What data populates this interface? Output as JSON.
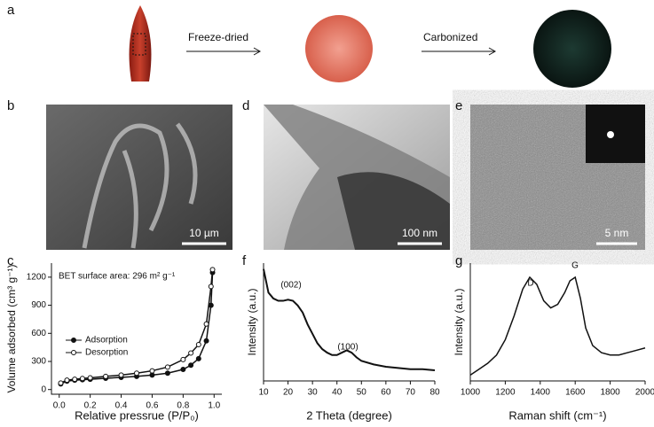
{
  "figure": {
    "panel_labels": [
      "a",
      "b",
      "c",
      "d",
      "e",
      "f",
      "g"
    ],
    "steps": [
      "Freeze-dried",
      "Carbonized"
    ],
    "scale_bars": [
      "10 µm",
      "100 nm",
      "5 nm"
    ]
  },
  "chart_data": [
    {
      "type": "line",
      "xlabel": "Relative pressrue (P/P₀)",
      "ylabel": "Volume adsorbed (cm³ g⁻¹)",
      "annotations": [
        "BET surface area: 296 m² g⁻¹"
      ],
      "x": [
        0.01,
        0.05,
        0.1,
        0.15,
        0.2,
        0.3,
        0.4,
        0.5,
        0.6,
        0.7,
        0.8,
        0.85,
        0.9,
        0.95,
        0.98,
        0.99
      ],
      "series": [
        {
          "name": "Adsorption",
          "color": "#111111",
          "marker": "filled",
          "values": [
            60,
            90,
            100,
            105,
            110,
            120,
            130,
            140,
            155,
            175,
            215,
            260,
            330,
            520,
            900,
            1250
          ]
        },
        {
          "name": "Desorption",
          "color": "#111111",
          "marker": "open",
          "values": [
            70,
            100,
            110,
            118,
            125,
            140,
            155,
            175,
            200,
            240,
            320,
            390,
            480,
            700,
            1100,
            1280
          ]
        }
      ],
      "xlim": [
        -0.05,
        1.05
      ],
      "xticks": [
        {
          "value": 0,
          "label": "0.0"
        },
        0.2,
        0.4,
        0.6,
        0.8,
        {
          "value": 1,
          "label": "1.0"
        }
      ],
      "ylim": [
        -50,
        1350
      ],
      "yticks": [
        0,
        300,
        600,
        900,
        1200
      ],
      "legend": "lower center"
    },
    {
      "type": "line",
      "xlabel": "2 Theta (degree)",
      "ylabel": "Intensity (a.u.)",
      "annotations": [
        "(002)",
        "(100)"
      ],
      "x": [
        10,
        12,
        14,
        16,
        18,
        20,
        22,
        24,
        26,
        28,
        30,
        32,
        34,
        36,
        38,
        40,
        42,
        44,
        46,
        48,
        50,
        55,
        60,
        65,
        70,
        75,
        80
      ],
      "series": [
        {
          "color": "#111111",
          "values": [
            95,
            75,
            70,
            68,
            68,
            69,
            68,
            64,
            58,
            48,
            40,
            32,
            27,
            24,
            22,
            22,
            24,
            26,
            24,
            20,
            17,
            14,
            12,
            11,
            10,
            10,
            9
          ]
        }
      ],
      "xlim": [
        10,
        80
      ],
      "xticks": [
        10,
        20,
        30,
        40,
        50,
        60,
        70,
        80
      ],
      "ylim": [
        0,
        100
      ]
    },
    {
      "type": "line",
      "xlabel": "Raman shift (cm⁻¹)",
      "ylabel": "Intensity (a.u.)",
      "annotations": [
        "D",
        "G"
      ],
      "x": [
        1000,
        1050,
        1100,
        1150,
        1200,
        1250,
        1300,
        1340,
        1380,
        1420,
        1460,
        1500,
        1540,
        1570,
        1600,
        1630,
        1660,
        1700,
        1750,
        1800,
        1850,
        1900,
        1950,
        2000
      ],
      "series": [
        {
          "color": "#111111",
          "values": [
            5,
            10,
            15,
            22,
            35,
            55,
            78,
            88,
            82,
            68,
            62,
            65,
            75,
            85,
            88,
            70,
            45,
            30,
            24,
            22,
            22,
            24,
            26,
            28
          ]
        }
      ],
      "xlim": [
        1000,
        2000
      ],
      "xticks": [
        1000,
        1200,
        1400,
        1600,
        1800,
        2000
      ],
      "ylim": [
        0,
        100
      ]
    }
  ]
}
